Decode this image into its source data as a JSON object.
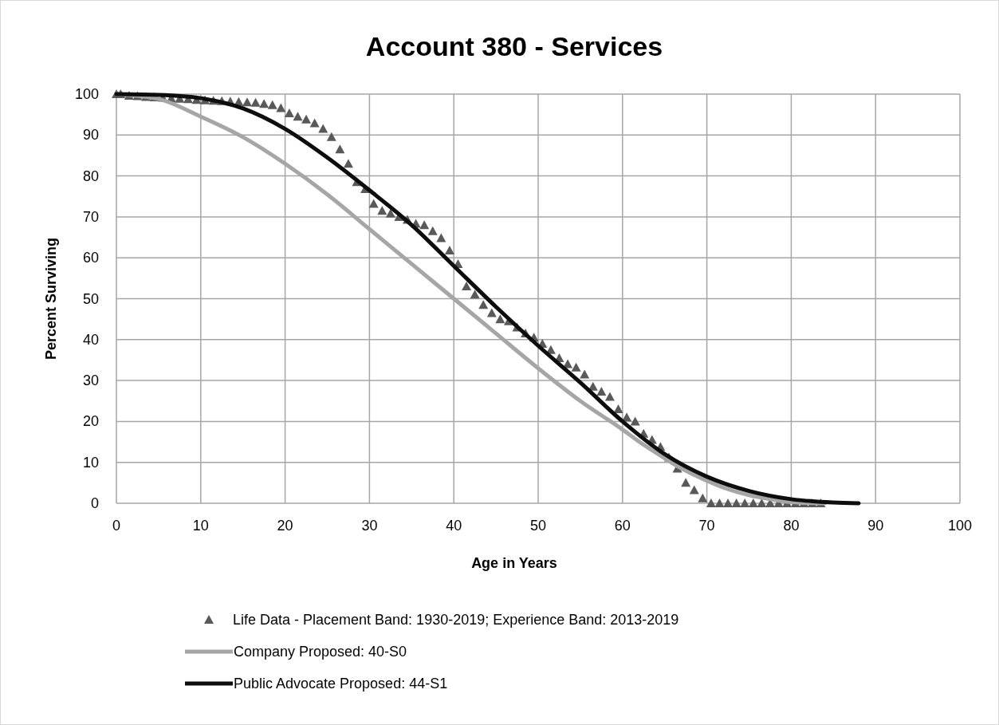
{
  "chart_data": {
    "type": "line",
    "title": "Account 380 - Services",
    "xlabel": "Age in Years",
    "ylabel": "Percent Surviving",
    "xlim": [
      0,
      100
    ],
    "xticks": [
      0,
      10,
      20,
      30,
      40,
      50,
      60,
      70,
      80,
      90,
      100
    ],
    "ylim": [
      0,
      100
    ],
    "yticks": [
      0,
      10,
      20,
      30,
      40,
      50,
      60,
      70,
      80,
      90,
      100
    ],
    "grid": true,
    "legend": "bottom",
    "series": [
      {
        "name": "Life Data - Placement Band: 1930-2019; Experience Band: 2013-2019",
        "type": "scatter",
        "marker": "triangle",
        "color": "#595959",
        "x": [
          0,
          0.5,
          1.5,
          2.5,
          3.5,
          4.5,
          5.5,
          6.5,
          7.5,
          8.5,
          9.5,
          10.5,
          11.5,
          12.5,
          13.5,
          14.5,
          15.5,
          16.5,
          17.5,
          18.5,
          19.5,
          20.5,
          21.5,
          22.5,
          23.5,
          24.5,
          25.5,
          26.5,
          27.5,
          28.5,
          29.5,
          30.5,
          31.5,
          32.5,
          33.5,
          34.5,
          35.5,
          36.5,
          37.5,
          38.5,
          39.5,
          40.5,
          41.5,
          42.5,
          43.5,
          44.5,
          45.5,
          46.5,
          47.5,
          48.5,
          49.5,
          50.5,
          51.5,
          52.5,
          53.5,
          54.5,
          55.5,
          56.5,
          57.5,
          58.5,
          59.5,
          60.5,
          61.5,
          62.5,
          63.5,
          64.5,
          65.5,
          66.5,
          67.5,
          68.5,
          69.5,
          70.5,
          71.5,
          72.5,
          73.5,
          74.5,
          75.5,
          76.5,
          77.5,
          78.5,
          79.5,
          80.5,
          81.5,
          82.5,
          83.5
        ],
        "values": [
          100,
          100,
          99.6,
          99.5,
          99.3,
          99.2,
          99.1,
          99,
          98.9,
          98.8,
          98.6,
          98.5,
          98.4,
          98.3,
          98.2,
          98.1,
          98,
          97.9,
          97.6,
          97.3,
          96.6,
          95.3,
          94.5,
          93.8,
          92.9,
          91.5,
          89.5,
          86.5,
          83,
          78.5,
          76.8,
          73.2,
          71.5,
          70.8,
          70,
          69.3,
          68.3,
          68,
          66.5,
          64.8,
          61.8,
          58.5,
          53,
          51,
          48.5,
          46.5,
          45,
          44.5,
          43,
          41.5,
          40.5,
          39,
          37.5,
          35.5,
          34,
          33.2,
          31.5,
          28.5,
          27.3,
          26,
          23,
          21,
          20,
          17,
          15.5,
          13.8,
          11.2,
          8.5,
          5,
          3.2,
          1.2,
          0,
          0,
          0,
          0,
          0,
          0,
          0,
          0,
          0,
          0,
          0,
          0,
          0,
          0
        ]
      },
      {
        "name": "Company Proposed: 40-S0",
        "color": "#a6a6a6",
        "x": [
          0,
          5,
          10,
          15,
          20,
          25,
          30,
          35,
          40,
          45,
          50,
          55,
          60,
          62,
          65,
          67,
          70,
          72,
          75,
          77,
          80,
          84
        ],
        "values": [
          100,
          98.8,
          94.5,
          89.5,
          83,
          75.5,
          67,
          58.5,
          50,
          41.5,
          33,
          25,
          18,
          15,
          11,
          8.5,
          5.5,
          3.8,
          2,
          1.2,
          0.3,
          0
        ]
      },
      {
        "name": "Public Advocate Proposed: 44-S1",
        "color": "#0d0d0d",
        "x": [
          0,
          5,
          10,
          15,
          20,
          25,
          30,
          35,
          40,
          45,
          50,
          55,
          60,
          65,
          70,
          75,
          80,
          85,
          88
        ],
        "values": [
          100,
          99.8,
          99,
          96.5,
          91.5,
          84.5,
          76.5,
          68,
          58,
          48,
          38.5,
          29.5,
          20,
          12,
          6.5,
          3,
          1,
          0.2,
          0
        ]
      }
    ]
  }
}
